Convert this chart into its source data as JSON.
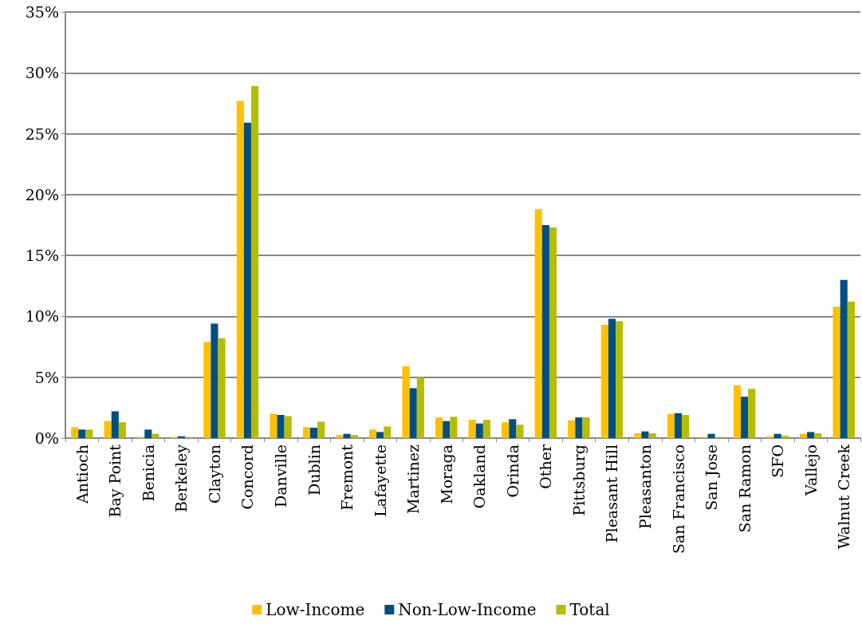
{
  "chart_data": {
    "type": "bar",
    "categories": [
      "Antioch",
      "Bay Point",
      "Benicia",
      "Berkeley",
      "Clayton",
      "Concord",
      "Danville",
      "Dublin",
      "Fremont",
      "Lafayette",
      "Martinez",
      "Moraga",
      "Oakland",
      "Orinda",
      "Other",
      "Pittsburg",
      "Pleasant Hill",
      "Pleasanton",
      "San Francisco",
      "San Jose",
      "San Ramon",
      "SFO",
      "Vallejo",
      "Walnut Creek"
    ],
    "series": [
      {
        "name": "Low-Income",
        "color": "#ffc000",
        "values": [
          0.9,
          1.4,
          0.1,
          0.1,
          7.9,
          27.7,
          2.0,
          0.9,
          0.25,
          0.7,
          5.9,
          1.7,
          1.5,
          1.3,
          18.8,
          1.45,
          9.3,
          0.4,
          2.0,
          0.1,
          4.35,
          0.15,
          0.35,
          10.8
        ]
      },
      {
        "name": "Non-Low-Income",
        "color": "#004f81",
        "values": [
          0.7,
          2.2,
          0.7,
          0.15,
          9.4,
          25.9,
          1.9,
          0.85,
          0.35,
          0.5,
          4.1,
          1.4,
          1.2,
          1.55,
          17.5,
          1.7,
          9.8,
          0.55,
          2.05,
          0.35,
          3.4,
          0.35,
          0.5,
          13.0
        ]
      },
      {
        "name": "Total",
        "color": "#b5bd00",
        "values": [
          0.7,
          1.3,
          0.35,
          0.1,
          8.2,
          28.9,
          1.8,
          1.35,
          0.25,
          0.95,
          5.0,
          1.75,
          1.5,
          1.1,
          17.3,
          1.7,
          9.6,
          0.4,
          1.9,
          0.1,
          4.05,
          0.2,
          0.4,
          11.2
        ]
      }
    ],
    "ylim": [
      0,
      35
    ],
    "yticks": [
      {
        "value": 0,
        "label": "0%"
      },
      {
        "value": 5,
        "label": "5%"
      },
      {
        "value": 10,
        "label": "10%"
      },
      {
        "value": 15,
        "label": "15%"
      },
      {
        "value": 20,
        "label": "20%"
      },
      {
        "value": 25,
        "label": "25%"
      },
      {
        "value": 30,
        "label": "30%"
      },
      {
        "value": 35,
        "label": "35%"
      }
    ],
    "grid": "y",
    "legend": "bottom"
  }
}
